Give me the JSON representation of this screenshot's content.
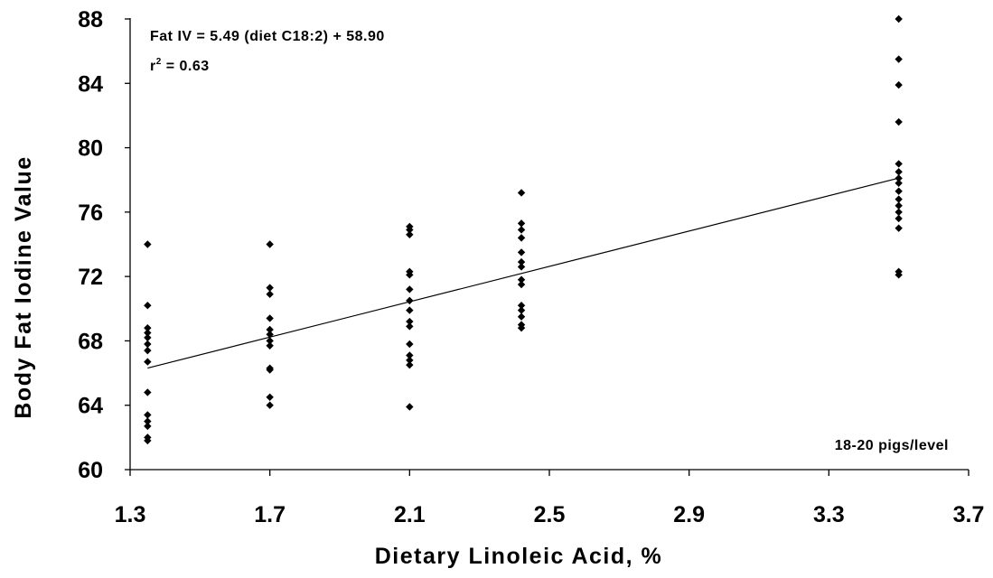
{
  "chart_data": {
    "type": "scatter",
    "xlabel": "Dietary Linoleic Acid, %",
    "ylabel": "Body Fat Iodine Value",
    "xlim": [
      1.3,
      3.7
    ],
    "ylim": [
      60,
      88
    ],
    "x_ticks": [
      "1.3",
      "1.7",
      "2.1",
      "2.5",
      "2.9",
      "3.3",
      "3.7"
    ],
    "y_ticks": [
      "60",
      "64",
      "68",
      "72",
      "76",
      "80",
      "84",
      "88"
    ],
    "grid": false,
    "legend": "none",
    "marker": "diamond",
    "marker_color": "#000000",
    "annotations": {
      "equation": "Fat IV = 5.49 (diet C18:2) + 58.90",
      "r2_prefix": "r",
      "r2_sup": "2",
      "r2_value": " = 0.63",
      "sample_note": "18-20 pigs/level"
    },
    "regression": {
      "slope": 5.49,
      "intercept": 58.9,
      "x_range": [
        1.35,
        3.5
      ]
    },
    "points": [
      {
        "x": 1.35,
        "y": 74.0
      },
      {
        "x": 1.35,
        "y": 70.2
      },
      {
        "x": 1.35,
        "y": 68.8
      },
      {
        "x": 1.35,
        "y": 68.5
      },
      {
        "x": 1.35,
        "y": 68.2
      },
      {
        "x": 1.35,
        "y": 67.8
      },
      {
        "x": 1.35,
        "y": 67.4
      },
      {
        "x": 1.35,
        "y": 66.7
      },
      {
        "x": 1.35,
        "y": 64.8
      },
      {
        "x": 1.35,
        "y": 63.4
      },
      {
        "x": 1.35,
        "y": 63.0
      },
      {
        "x": 1.35,
        "y": 62.7
      },
      {
        "x": 1.35,
        "y": 62.0
      },
      {
        "x": 1.35,
        "y": 61.8
      },
      {
        "x": 1.7,
        "y": 74.0
      },
      {
        "x": 1.7,
        "y": 71.3
      },
      {
        "x": 1.7,
        "y": 70.9
      },
      {
        "x": 1.7,
        "y": 69.4
      },
      {
        "x": 1.7,
        "y": 68.7
      },
      {
        "x": 1.7,
        "y": 68.4
      },
      {
        "x": 1.7,
        "y": 68.0
      },
      {
        "x": 1.7,
        "y": 67.7
      },
      {
        "x": 1.7,
        "y": 66.3
      },
      {
        "x": 1.7,
        "y": 66.2
      },
      {
        "x": 1.7,
        "y": 64.5
      },
      {
        "x": 1.7,
        "y": 64.0
      },
      {
        "x": 2.1,
        "y": 75.1
      },
      {
        "x": 2.1,
        "y": 74.9
      },
      {
        "x": 2.1,
        "y": 74.6
      },
      {
        "x": 2.1,
        "y": 72.3
      },
      {
        "x": 2.1,
        "y": 72.1
      },
      {
        "x": 2.1,
        "y": 71.2
      },
      {
        "x": 2.1,
        "y": 70.5
      },
      {
        "x": 2.1,
        "y": 69.9
      },
      {
        "x": 2.1,
        "y": 69.2
      },
      {
        "x": 2.1,
        "y": 68.9
      },
      {
        "x": 2.1,
        "y": 67.8
      },
      {
        "x": 2.1,
        "y": 67.1
      },
      {
        "x": 2.1,
        "y": 66.8
      },
      {
        "x": 2.1,
        "y": 66.5
      },
      {
        "x": 2.1,
        "y": 63.9
      },
      {
        "x": 2.42,
        "y": 77.2
      },
      {
        "x": 2.42,
        "y": 75.3
      },
      {
        "x": 2.42,
        "y": 74.9
      },
      {
        "x": 2.42,
        "y": 74.4
      },
      {
        "x": 2.42,
        "y": 73.5
      },
      {
        "x": 2.42,
        "y": 72.9
      },
      {
        "x": 2.42,
        "y": 72.6
      },
      {
        "x": 2.42,
        "y": 71.8
      },
      {
        "x": 2.42,
        "y": 71.5
      },
      {
        "x": 2.42,
        "y": 70.2
      },
      {
        "x": 2.42,
        "y": 69.9
      },
      {
        "x": 2.42,
        "y": 69.5
      },
      {
        "x": 2.42,
        "y": 69.0
      },
      {
        "x": 2.42,
        "y": 68.8
      },
      {
        "x": 3.5,
        "y": 88.0
      },
      {
        "x": 3.5,
        "y": 85.5
      },
      {
        "x": 3.5,
        "y": 83.9
      },
      {
        "x": 3.5,
        "y": 81.6
      },
      {
        "x": 3.5,
        "y": 79.0
      },
      {
        "x": 3.5,
        "y": 78.5
      },
      {
        "x": 3.5,
        "y": 78.1
      },
      {
        "x": 3.5,
        "y": 77.8
      },
      {
        "x": 3.5,
        "y": 77.3
      },
      {
        "x": 3.5,
        "y": 76.8
      },
      {
        "x": 3.5,
        "y": 76.4
      },
      {
        "x": 3.5,
        "y": 76.0
      },
      {
        "x": 3.5,
        "y": 75.6
      },
      {
        "x": 3.5,
        "y": 75.0
      },
      {
        "x": 3.5,
        "y": 72.3
      },
      {
        "x": 3.5,
        "y": 72.1
      }
    ]
  }
}
